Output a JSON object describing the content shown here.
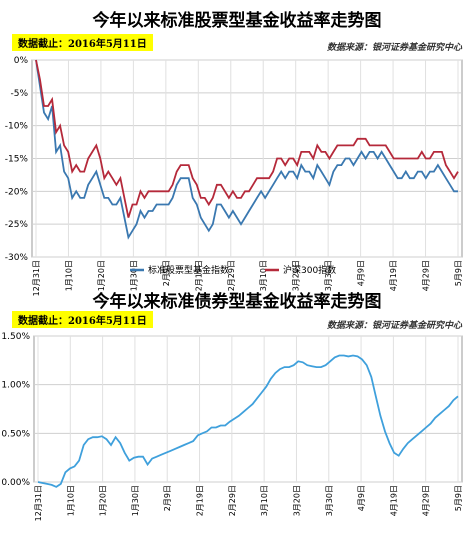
{
  "charts_meta": [
    {
      "title": "今年以来标准股票型基金收益率走势图",
      "cutoff": "数据截止：2016年5月11日",
      "source": "数据来源：银河证券基金研究中心"
    },
    {
      "title": "今年以来标准债券型基金收益率走势图",
      "cutoff": "数据截止：2016年5月11日",
      "source": "数据来源：银河证券基金研究中心"
    }
  ],
  "chart_data": [
    {
      "type": "line",
      "title": "今年以来标准股票型基金收益率走势图",
      "xlabel": "",
      "ylabel": "",
      "ylim": [
        -30,
        0
      ],
      "y_ticks": [
        "0%",
        "-5%",
        "-10%",
        "-15%",
        "-20%",
        "-25%",
        "-30%"
      ],
      "x_ticks": [
        "12月31日",
        "1月10日",
        "1月20日",
        "1月30日",
        "2月9日",
        "2月19日",
        "2月29日",
        "3月10日",
        "3月20日",
        "3月30日",
        "4月9日",
        "4月19日",
        "4月29日",
        "5月9日"
      ],
      "grid": true,
      "legend": "bottom",
      "series": [
        {
          "name": "标准股票型基金指数",
          "color": "#3a78b0",
          "values": [
            0,
            -4,
            -8,
            -9,
            -7,
            -14,
            -13,
            -17,
            -18,
            -21,
            -20,
            -21,
            -21,
            -19,
            -18,
            -17,
            -19,
            -21,
            -21,
            -22,
            -22,
            -21,
            -24,
            -27,
            -26,
            -25,
            -23,
            -24,
            -23,
            -23,
            -22,
            -22,
            -22,
            -22,
            -21,
            -19,
            -18,
            -18,
            -18,
            -21,
            -22,
            -24,
            -25,
            -26,
            -25,
            -22,
            -22,
            -23,
            -24,
            -23,
            -24,
            -25,
            -24,
            -23,
            -22,
            -21,
            -20,
            -21,
            -20,
            -19,
            -18,
            -17,
            -18,
            -17,
            -17,
            -18,
            -16,
            -17,
            -17,
            -18,
            -16,
            -17,
            -18,
            -19,
            -17,
            -16,
            -16,
            -15,
            -15,
            -16,
            -15,
            -14,
            -15,
            -14,
            -14,
            -15,
            -14,
            -15,
            -16,
            -17,
            -18,
            -18,
            -17,
            -18,
            -18,
            -17,
            -17,
            -18,
            -17,
            -17,
            -16,
            -17,
            -18,
            -19,
            -20,
            -20
          ]
        },
        {
          "name": "沪深300指数",
          "color": "#b5293a",
          "values": [
            0,
            -3,
            -7,
            -7,
            -6,
            -11,
            -10,
            -13,
            -14,
            -17,
            -16,
            -17,
            -17,
            -15,
            -14,
            -13,
            -15,
            -18,
            -17,
            -18,
            -19,
            -18,
            -21,
            -24,
            -22,
            -22,
            -20,
            -21,
            -20,
            -20,
            -20,
            -20,
            -20,
            -20,
            -19,
            -17,
            -16,
            -16,
            -16,
            -18,
            -19,
            -21,
            -21,
            -22,
            -21,
            -19,
            -19,
            -20,
            -21,
            -20,
            -21,
            -21,
            -20,
            -20,
            -19,
            -18,
            -18,
            -18,
            -18,
            -17,
            -15,
            -15,
            -16,
            -15,
            -15,
            -16,
            -14,
            -14,
            -14,
            -15,
            -13,
            -14,
            -14,
            -15,
            -14,
            -13,
            -13,
            -13,
            -13,
            -13,
            -12,
            -12,
            -12,
            -13,
            -13,
            -13,
            -13,
            -13,
            -14,
            -15,
            -15,
            -15,
            -15,
            -15,
            -15,
            -15,
            -14,
            -15,
            -15,
            -14,
            -14,
            -14,
            -16,
            -17,
            -18,
            -17
          ]
        }
      ]
    },
    {
      "type": "line",
      "title": "今年以来标准债券型基金收益率走势图",
      "xlabel": "",
      "ylabel": "",
      "ylim": [
        0,
        1.5
      ],
      "y_ticks": [
        "1.50%",
        "1.00%",
        "0.50%",
        "0.00%"
      ],
      "x_ticks": [
        "12月31日",
        "1月10日",
        "1月20日",
        "1月30日",
        "2月9日",
        "2月19日",
        "2月29日",
        "3月10日",
        "3月20日",
        "3月30日",
        "4月9日",
        "4月19日",
        "4月29日",
        "5月9日"
      ],
      "grid": true,
      "legend": "none",
      "series": [
        {
          "name": "",
          "color": "#3fa0dc",
          "values": [
            0,
            -0.01,
            -0.02,
            -0.03,
            -0.05,
            -0.02,
            0.1,
            0.14,
            0.16,
            0.22,
            0.38,
            0.44,
            0.46,
            0.46,
            0.47,
            0.44,
            0.38,
            0.46,
            0.4,
            0.3,
            0.22,
            0.25,
            0.26,
            0.26,
            0.18,
            0.24,
            0.26,
            0.28,
            0.3,
            0.32,
            0.34,
            0.36,
            0.38,
            0.4,
            0.42,
            0.48,
            0.5,
            0.52,
            0.56,
            0.56,
            0.58,
            0.58,
            0.62,
            0.65,
            0.68,
            0.72,
            0.76,
            0.8,
            0.86,
            0.92,
            0.98,
            1.06,
            1.12,
            1.16,
            1.18,
            1.18,
            1.2,
            1.24,
            1.23,
            1.2,
            1.19,
            1.18,
            1.18,
            1.2,
            1.24,
            1.28,
            1.3,
            1.3,
            1.29,
            1.3,
            1.29,
            1.26,
            1.2,
            1.08,
            0.88,
            0.68,
            0.52,
            0.4,
            0.3,
            0.27,
            0.34,
            0.4,
            0.44,
            0.48,
            0.52,
            0.56,
            0.6,
            0.66,
            0.7,
            0.74,
            0.78,
            0.84,
            0.88
          ]
        }
      ]
    }
  ]
}
